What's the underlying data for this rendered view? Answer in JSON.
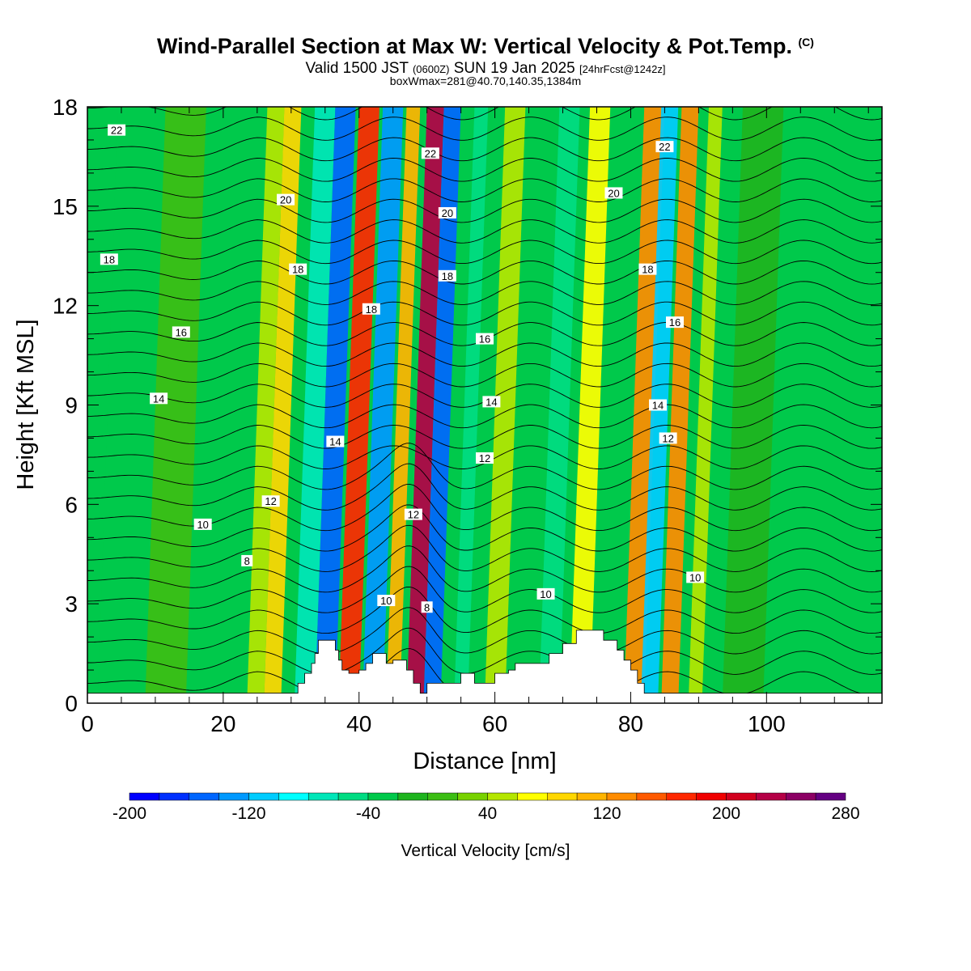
{
  "header": {
    "title": "Wind-Parallel Section at Max W: Vertical Velocity & Pot.Temp.",
    "copyright_mark": "(C)",
    "valid_prefix": "Valid 1500 JST",
    "valid_utc": "(0600Z)",
    "valid_date": "SUN 19 Jan 2025",
    "forecast_info": "[24hrFcst@1242z]",
    "box_info": "boxWmax=281@40.70,140.35,1384m"
  },
  "chart_data": {
    "type": "heatmap",
    "xlabel": "Distance [nm]",
    "ylabel": "Height [Kft MSL]",
    "xlim": [
      0,
      117
    ],
    "ylim": [
      0,
      18
    ],
    "x_ticks": [
      0,
      20,
      40,
      60,
      80,
      100
    ],
    "y_ticks": [
      0,
      3,
      6,
      9,
      12,
      15,
      18
    ],
    "colorbar": {
      "label": "Vertical Velocity [cm/s]",
      "range": [
        -200,
        300
      ],
      "step": 20,
      "tick_labels": [
        -200,
        -120,
        -40,
        40,
        120,
        200,
        280
      ],
      "colors": [
        "#0000ff",
        "#0030ff",
        "#0066ff",
        "#0099ff",
        "#00ccff",
        "#00ffff",
        "#00e6b8",
        "#00dc82",
        "#00c94b",
        "#1eb41e",
        "#3cbe14",
        "#78d200",
        "#b4e600",
        "#ffff00",
        "#ffd700",
        "#ffb400",
        "#ff8c00",
        "#ff5a00",
        "#ff2800",
        "#f00000",
        "#d2001e",
        "#b40046",
        "#8c0064",
        "#640082"
      ]
    },
    "vertical_velocity_bands": [
      {
        "x": 3,
        "w": 8,
        "value": -30
      },
      {
        "x": 10,
        "w": 6,
        "value": 0
      },
      {
        "x": 25,
        "w": 2.5,
        "value": 40
      },
      {
        "x": 27.5,
        "w": 2.5,
        "value": 80
      },
      {
        "x": 32,
        "w": 3,
        "value": -80
      },
      {
        "x": 35,
        "w": 3,
        "value": -150
      },
      {
        "x": 38.5,
        "w": 3,
        "value": 160
      },
      {
        "x": 42,
        "w": 3,
        "value": -140
      },
      {
        "x": 45.5,
        "w": 2,
        "value": 100
      },
      {
        "x": 48.5,
        "w": 2.5,
        "value": 230
      },
      {
        "x": 51,
        "w": 2.5,
        "value": -150
      },
      {
        "x": 55.5,
        "w": 2,
        "value": -60
      },
      {
        "x": 60,
        "w": 3,
        "value": 40
      },
      {
        "x": 68,
        "w": 3,
        "value": -60
      },
      {
        "x": 72.5,
        "w": 3,
        "value": 60
      },
      {
        "x": 80.5,
        "w": 3,
        "value": 120
      },
      {
        "x": 83,
        "w": 2.5,
        "value": -120
      },
      {
        "x": 86,
        "w": 2.5,
        "value": 130
      },
      {
        "x": 90,
        "w": 2,
        "value": 40
      },
      {
        "x": 95,
        "w": 6,
        "value": -20
      }
    ],
    "terrain_profile": [
      [
        0,
        0.3
      ],
      [
        31,
        0.3
      ],
      [
        31,
        0.6
      ],
      [
        32,
        0.6
      ],
      [
        32,
        0.9
      ],
      [
        33,
        0.9
      ],
      [
        33,
        1.2
      ],
      [
        33.5,
        1.2
      ],
      [
        33.5,
        1.5
      ],
      [
        34,
        1.5
      ],
      [
        34,
        1.9
      ],
      [
        36.5,
        1.9
      ],
      [
        36.5,
        1.6
      ],
      [
        37,
        1.6
      ],
      [
        37,
        1.3
      ],
      [
        37.5,
        1.3
      ],
      [
        37.5,
        1.0
      ],
      [
        38.5,
        1.0
      ],
      [
        38.5,
        0.9
      ],
      [
        40,
        0.9
      ],
      [
        40,
        1.0
      ],
      [
        41,
        1.0
      ],
      [
        41,
        1.2
      ],
      [
        42,
        1.2
      ],
      [
        42,
        1.5
      ],
      [
        44,
        1.5
      ],
      [
        44,
        1.2
      ],
      [
        45,
        1.2
      ],
      [
        45,
        1.3
      ],
      [
        47,
        1.3
      ],
      [
        47,
        1.0
      ],
      [
        48,
        1.0
      ],
      [
        48,
        0.6
      ],
      [
        49,
        0.6
      ],
      [
        49,
        0.3
      ],
      [
        50,
        0.3
      ],
      [
        50,
        0.6
      ],
      [
        55,
        0.6
      ],
      [
        55,
        0.9
      ],
      [
        57,
        0.9
      ],
      [
        57,
        0.6
      ],
      [
        60,
        0.6
      ],
      [
        60,
        0.9
      ],
      [
        62,
        0.9
      ],
      [
        62,
        1.0
      ],
      [
        63,
        1.0
      ],
      [
        63,
        1.2
      ],
      [
        68,
        1.2
      ],
      [
        68,
        1.5
      ],
      [
        70,
        1.5
      ],
      [
        70,
        1.8
      ],
      [
        72,
        1.8
      ],
      [
        72,
        2.2
      ],
      [
        76,
        2.2
      ],
      [
        76,
        1.9
      ],
      [
        78,
        1.9
      ],
      [
        78,
        1.6
      ],
      [
        79,
        1.6
      ],
      [
        79,
        1.3
      ],
      [
        80,
        1.3
      ],
      [
        80,
        1.0
      ],
      [
        81,
        1.0
      ],
      [
        81,
        0.6
      ],
      [
        82,
        0.6
      ],
      [
        82,
        0.3
      ],
      [
        117,
        0.3
      ]
    ],
    "theta_contour_labels": [
      {
        "text": "22",
        "x": 4.3,
        "y": 17.3
      },
      {
        "text": "22",
        "x": 50.5,
        "y": 16.6
      },
      {
        "text": "22",
        "x": 85,
        "y": 16.8
      },
      {
        "text": "20",
        "x": 29.2,
        "y": 15.2
      },
      {
        "text": "20",
        "x": 53,
        "y": 14.8
      },
      {
        "text": "20",
        "x": 77.5,
        "y": 15.4
      },
      {
        "text": "18",
        "x": 3.2,
        "y": 13.4
      },
      {
        "text": "18",
        "x": 31,
        "y": 13.1
      },
      {
        "text": "18",
        "x": 41.8,
        "y": 11.9
      },
      {
        "text": "18",
        "x": 53,
        "y": 12.9
      },
      {
        "text": "18",
        "x": 82.5,
        "y": 13.1
      },
      {
        "text": "16",
        "x": 13.8,
        "y": 11.2
      },
      {
        "text": "16",
        "x": 58.5,
        "y": 11.0
      },
      {
        "text": "16",
        "x": 86.5,
        "y": 11.5
      },
      {
        "text": "14",
        "x": 10.5,
        "y": 9.2
      },
      {
        "text": "14",
        "x": 36.5,
        "y": 7.9
      },
      {
        "text": "14",
        "x": 59.5,
        "y": 9.1
      },
      {
        "text": "14",
        "x": 84,
        "y": 9.0
      },
      {
        "text": "12",
        "x": 27,
        "y": 6.1
      },
      {
        "text": "12",
        "x": 48,
        "y": 5.7
      },
      {
        "text": "12",
        "x": 58.5,
        "y": 7.4
      },
      {
        "text": "12",
        "x": 85.5,
        "y": 8.0
      },
      {
        "text": "10",
        "x": 17,
        "y": 5.4
      },
      {
        "text": "10",
        "x": 44,
        "y": 3.1
      },
      {
        "text": "10",
        "x": 67.5,
        "y": 3.3
      },
      {
        "text": "10",
        "x": 89.5,
        "y": 3.8
      },
      {
        "text": "8",
        "x": 23.5,
        "y": 4.3
      },
      {
        "text": "8",
        "x": 50,
        "y": 2.9
      }
    ]
  }
}
